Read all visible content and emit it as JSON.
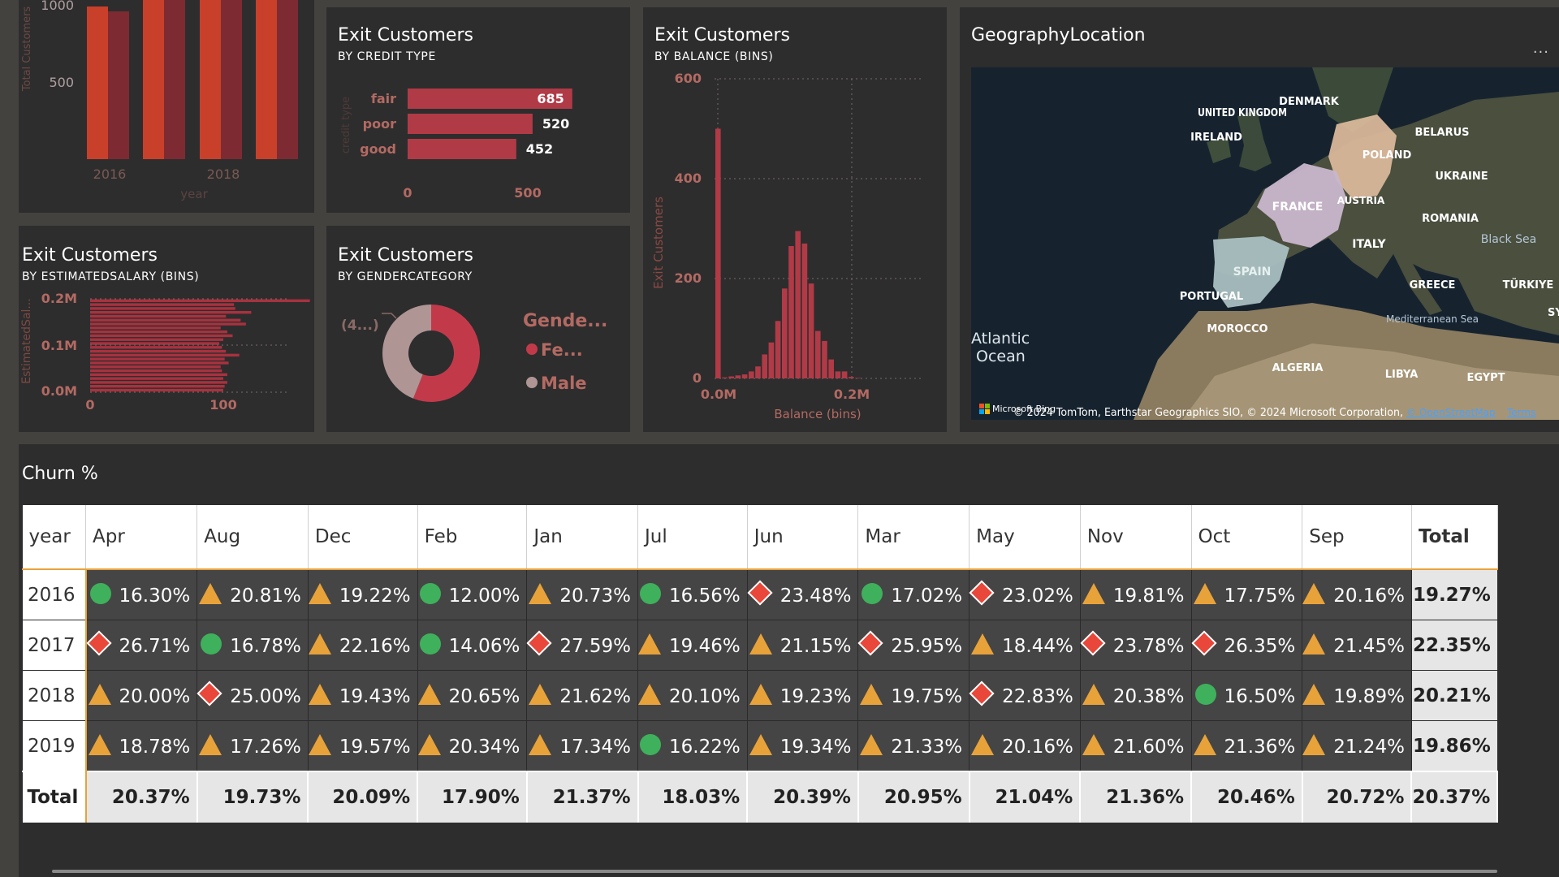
{
  "year_chart": {
    "y_ticks": [
      "1000",
      "500"
    ],
    "x_ticks": [
      "2016",
      "2018"
    ],
    "xlabel": "year",
    "ylabel": "Total Customers",
    "colors": {
      "a": "#c8402a",
      "b": "#7e2a33"
    }
  },
  "credit_card": {
    "title": "Exit Customers",
    "subtitle": "BY CREDIT TYPE",
    "ylabel": "credit type",
    "x_ticks": [
      "0",
      "500"
    ]
  },
  "salary_card": {
    "title": "Exit Customers",
    "subtitle": "BY ESTIMATEDSALARY (BINS)",
    "ylabel": "EstimatedSal...",
    "y_ticks": [
      "0.2M",
      "0.1M",
      "0.0M"
    ],
    "x_ticks": [
      "0",
      "100"
    ]
  },
  "gender_card": {
    "title": "Exit Customers",
    "subtitle": "BY GENDERCATEGORY",
    "slice_label": "(4...)",
    "legend_title": "Gende...",
    "legend_items": [
      "Fe...",
      "Male"
    ]
  },
  "balance_card": {
    "title": "Exit Customers",
    "subtitle": "BY BALANCE (BINS)",
    "ylabel": "Exit Customers",
    "xlabel": "Balance (bins)",
    "y_ticks": [
      "600",
      "400",
      "200",
      "0"
    ],
    "x_ticks": [
      "0.0M",
      "0.2M"
    ]
  },
  "map_card": {
    "title": "GeographyLocation",
    "menu": "...",
    "labels": {
      "uk": "UNITED KINGDOM",
      "denmark": "DENMARK",
      "ireland": "IRELAND",
      "belarus": "BELARUS",
      "poland": "POLAND",
      "ukraine": "UKRAINE",
      "france": "FRANCE",
      "austria": "AUSTRIA",
      "romania": "ROMANIA",
      "blacksea": "Black Sea",
      "italy": "ITALY",
      "spain": "SPAIN",
      "portugal": "PORTUGAL",
      "greece": "GREECE",
      "turkiye": "TÜRKIYE",
      "medsea": "Mediterranean Sea",
      "syria": "SYRI",
      "atlantic1": "Atlantic",
      "atlantic2": "Ocean",
      "morocco": "MOROCCO",
      "algeria": "ALGERIA",
      "libya": "LIBYA",
      "egypt": "EGYPT"
    },
    "bing": "Microsoft Bing",
    "attribution": "© 2024 TomTom, Earthstar Geographics SIO, © 2024 Microsoft Corporation,",
    "osm_link": "© OpenStreetMap",
    "terms_link": "Terms"
  },
  "churn": {
    "title": "Churn %",
    "columns": [
      "year",
      "Apr",
      "Aug",
      "Dec",
      "Feb",
      "Jan",
      "Jul",
      "Jun",
      "Mar",
      "May",
      "Nov",
      "Oct",
      "Sep",
      "Total"
    ],
    "rows": [
      {
        "year": "2016",
        "total": "19.27%",
        "cells": [
          {
            "v": "16.30%",
            "i": "circle"
          },
          {
            "v": "20.81%",
            "i": "triangle"
          },
          {
            "v": "19.22%",
            "i": "triangle"
          },
          {
            "v": "12.00%",
            "i": "circle"
          },
          {
            "v": "20.73%",
            "i": "triangle"
          },
          {
            "v": "16.56%",
            "i": "circle"
          },
          {
            "v": "23.48%",
            "i": "diamond"
          },
          {
            "v": "17.02%",
            "i": "circle"
          },
          {
            "v": "23.02%",
            "i": "diamond"
          },
          {
            "v": "19.81%",
            "i": "triangle"
          },
          {
            "v": "17.75%",
            "i": "triangle"
          },
          {
            "v": "20.16%",
            "i": "triangle"
          }
        ]
      },
      {
        "year": "2017",
        "total": "22.35%",
        "cells": [
          {
            "v": "26.71%",
            "i": "diamond"
          },
          {
            "v": "16.78%",
            "i": "circle"
          },
          {
            "v": "22.16%",
            "i": "triangle"
          },
          {
            "v": "14.06%",
            "i": "circle"
          },
          {
            "v": "27.59%",
            "i": "diamond"
          },
          {
            "v": "19.46%",
            "i": "triangle"
          },
          {
            "v": "21.15%",
            "i": "triangle"
          },
          {
            "v": "25.95%",
            "i": "diamond"
          },
          {
            "v": "18.44%",
            "i": "triangle"
          },
          {
            "v": "23.78%",
            "i": "diamond"
          },
          {
            "v": "26.35%",
            "i": "diamond"
          },
          {
            "v": "21.45%",
            "i": "triangle"
          }
        ]
      },
      {
        "year": "2018",
        "total": "20.21%",
        "cells": [
          {
            "v": "20.00%",
            "i": "triangle"
          },
          {
            "v": "25.00%",
            "i": "diamond"
          },
          {
            "v": "19.43%",
            "i": "triangle"
          },
          {
            "v": "20.65%",
            "i": "triangle"
          },
          {
            "v": "21.62%",
            "i": "triangle"
          },
          {
            "v": "20.10%",
            "i": "triangle"
          },
          {
            "v": "19.23%",
            "i": "triangle"
          },
          {
            "v": "19.75%",
            "i": "triangle"
          },
          {
            "v": "22.83%",
            "i": "diamond"
          },
          {
            "v": "20.38%",
            "i": "triangle"
          },
          {
            "v": "16.50%",
            "i": "circle"
          },
          {
            "v": "19.89%",
            "i": "triangle"
          }
        ]
      },
      {
        "year": "2019",
        "total": "19.86%",
        "cells": [
          {
            "v": "18.78%",
            "i": "triangle"
          },
          {
            "v": "17.26%",
            "i": "triangle"
          },
          {
            "v": "19.57%",
            "i": "triangle"
          },
          {
            "v": "20.34%",
            "i": "triangle"
          },
          {
            "v": "17.34%",
            "i": "triangle"
          },
          {
            "v": "16.22%",
            "i": "circle"
          },
          {
            "v": "19.34%",
            "i": "triangle"
          },
          {
            "v": "21.33%",
            "i": "triangle"
          },
          {
            "v": "20.16%",
            "i": "triangle"
          },
          {
            "v": "21.60%",
            "i": "triangle"
          },
          {
            "v": "21.36%",
            "i": "triangle"
          },
          {
            "v": "21.24%",
            "i": "triangle"
          }
        ]
      }
    ],
    "total_row": {
      "label": "Total",
      "values": [
        "20.37%",
        "19.73%",
        "20.09%",
        "17.90%",
        "21.37%",
        "18.03%",
        "20.39%",
        "20.95%",
        "21.04%",
        "21.36%",
        "20.46%",
        "20.72%",
        "20.37%"
      ]
    }
  },
  "chart_data": [
    {
      "type": "bar",
      "title": "Exit Customers",
      "subtitle": "BY CREDIT TYPE",
      "orientation": "horizontal",
      "categories": [
        "fair",
        "poor",
        "good"
      ],
      "values": [
        685,
        520,
        452
      ],
      "xlim": [
        0,
        800
      ],
      "color": "#b13a47"
    },
    {
      "type": "bar",
      "title": "Exit Customers",
      "subtitle": "BY ESTIMATEDSALARY (BINS)",
      "orientation": "horizontal",
      "ylim_label": [
        "0.0M",
        "0.2M"
      ],
      "values": [
        100,
        101,
        103,
        100,
        103,
        99,
        98,
        104,
        101,
        112,
        102,
        99,
        97,
        100,
        107,
        103,
        98,
        117,
        113,
        102,
        121,
        109,
        108,
        165
      ],
      "xlim": [
        0,
        160
      ],
      "color": "#a8323f"
    },
    {
      "type": "pie",
      "title": "Exit Customers",
      "subtitle": "BY GENDERCATEGORY",
      "categories": [
        "Fe...",
        "Male"
      ],
      "values": [
        56,
        44
      ],
      "colors": [
        "#c23a4a",
        "#b09595"
      ]
    },
    {
      "type": "bar",
      "title": "Exit Customers",
      "subtitle": "BY BALANCE (BINS)",
      "x_tick_labels": [
        "0.0M",
        "0.2M"
      ],
      "values": [
        500,
        2,
        4,
        6,
        8,
        14,
        24,
        48,
        72,
        115,
        180,
        265,
        295,
        270,
        190,
        95,
        75,
        38,
        14,
        14,
        3,
        1
      ],
      "ylim": [
        0,
        600
      ],
      "xlabel": "Balance (bins)",
      "ylabel": "Exit Customers",
      "color": "#b13a47"
    }
  ]
}
